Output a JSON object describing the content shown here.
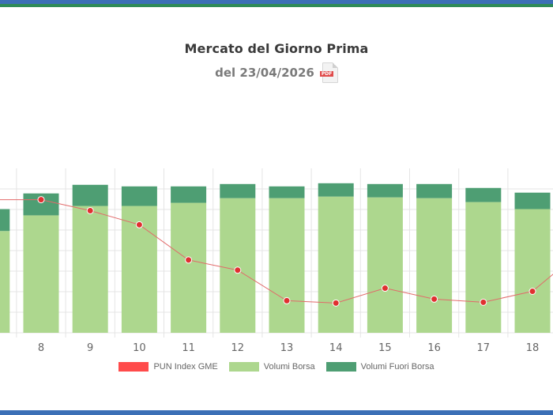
{
  "header": {
    "title": "Mercato del Giorno Prima",
    "subtitle": "del 23/04/2026",
    "pdf_label": "PDF"
  },
  "colors": {
    "top_bar_blue": "#3b6fb6",
    "top_bar_green": "#2e8b57",
    "bottom_bar": "#3b6fb6",
    "pun": "#ff4b4b",
    "pun_line": "#e26a6a",
    "volumi_borsa": "#add78e",
    "volumi_fuori_borsa": "#4e9e73",
    "grid": "#e4e4e4"
  },
  "chart_data": {
    "type": "bar",
    "categories": [
      "8",
      "9",
      "10",
      "11",
      "12",
      "13",
      "14",
      "15",
      "16",
      "17",
      "18"
    ],
    "series": [
      {
        "name": "PUN Index GME",
        "type": "line",
        "left_value": 170,
        "values": [
          170,
          156,
          138,
          93,
          80,
          41,
          38,
          57,
          43,
          39,
          53
        ],
        "right_value": 105
      },
      {
        "name": "Volumi Borsa",
        "type": "bar",
        "left_value": 130,
        "values": [
          150,
          162,
          162,
          166,
          172,
          172,
          174,
          173,
          172,
          167,
          158
        ]
      },
      {
        "name": "Volumi Fuori Borsa",
        "type": "bar",
        "left_value": 28,
        "values": [
          28,
          27,
          25,
          21,
          18,
          15,
          17,
          17,
          18,
          18,
          21
        ]
      }
    ],
    "ylim": [
      0,
      210
    ],
    "grid": true,
    "legend": "bottom"
  }
}
